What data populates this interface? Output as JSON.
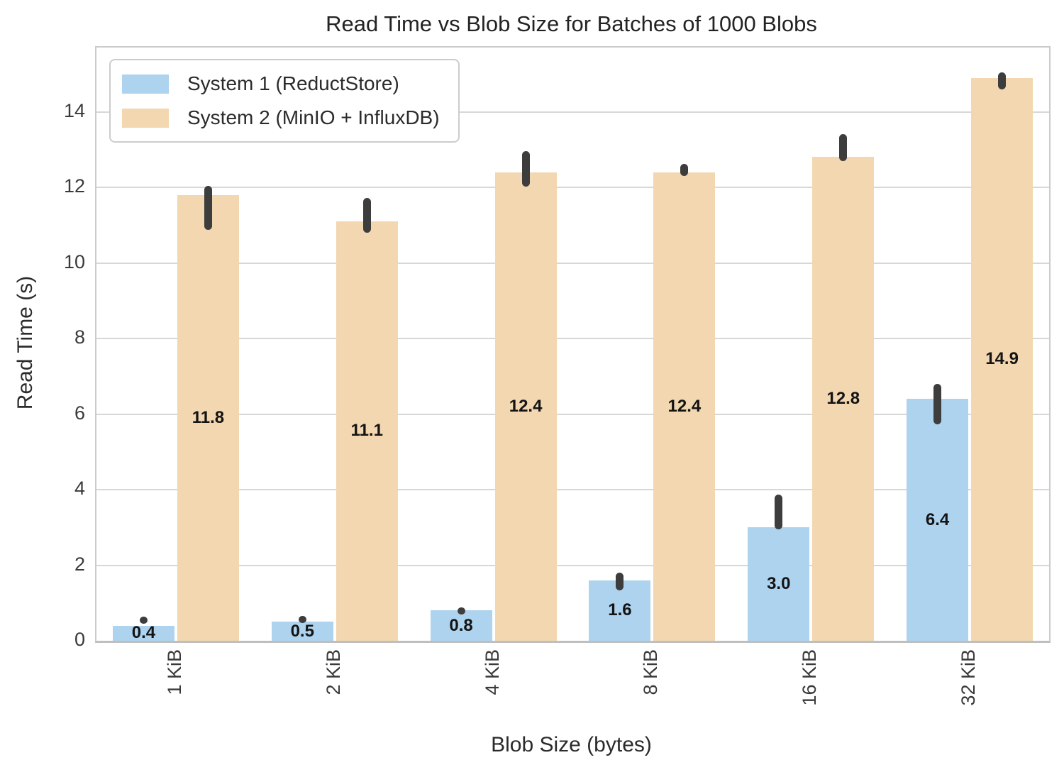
{
  "chart_data": {
    "type": "bar",
    "title": "Read Time vs Blob Size for Batches of 1000 Blobs",
    "xlabel": "Blob Size (bytes)",
    "ylabel": "Read Time (s)",
    "categories": [
      "1 KiB",
      "2 KiB",
      "4 KiB",
      "8 KiB",
      "16 KiB",
      "32 KiB"
    ],
    "series": [
      {
        "name": "System 1 (ReductStore)",
        "color": "#aed3ee",
        "values": [
          0.4,
          0.5,
          0.8,
          1.6,
          3.0,
          6.4
        ],
        "value_labels": [
          "0.4",
          "0.5",
          "0.8",
          "1.6",
          "3.0",
          "6.4"
        ],
        "error_ranges": [
          [
            0.47,
            0.63
          ],
          [
            0.48,
            0.66
          ],
          [
            0.7,
            0.88
          ],
          [
            1.33,
            1.8
          ],
          [
            2.95,
            3.87
          ],
          [
            5.72,
            6.8
          ]
        ]
      },
      {
        "name": "System 2 (MinIO + InfluxDB)",
        "color": "#f2d7b0",
        "values": [
          11.8,
          11.1,
          12.4,
          12.4,
          12.8,
          14.9
        ],
        "value_labels": [
          "11.8",
          "11.1",
          "12.4",
          "12.4",
          "12.8",
          "14.9"
        ],
        "error_ranges": [
          [
            10.88,
            12.03
          ],
          [
            10.79,
            11.72
          ],
          [
            12.02,
            12.96
          ],
          [
            12.3,
            12.62
          ],
          [
            12.7,
            13.4
          ],
          [
            14.6,
            15.05
          ]
        ]
      }
    ],
    "yticks": [
      0,
      2,
      4,
      6,
      8,
      10,
      12,
      14
    ],
    "ylim": [
      0,
      15.7
    ],
    "grid": "horizontal",
    "legend_position": "upper-left",
    "colors": {
      "grid": "#d7d7d7",
      "error_bar": "#3d3d3d",
      "plot_border": "#cbcbcb",
      "text": "#2b2b2b"
    }
  }
}
